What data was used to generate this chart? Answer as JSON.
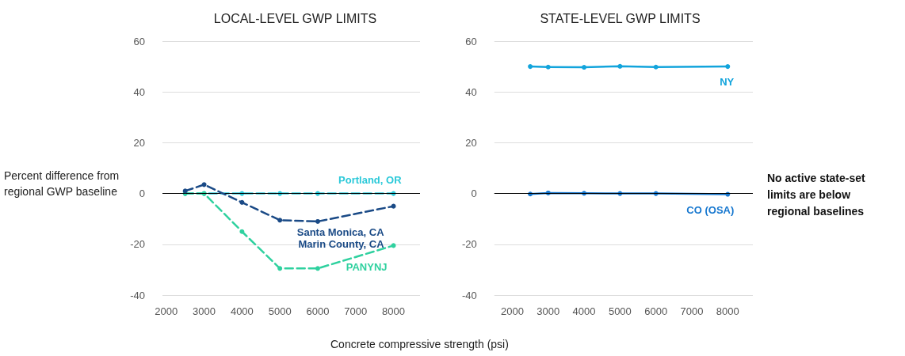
{
  "chart_data": [
    {
      "type": "line",
      "title": "LOCAL-LEVEL GWP LIMITS",
      "xlabel": "Concrete compressive strength (psi)",
      "ylabel": "Percent difference from regional GWP baseline",
      "x": [
        2500,
        3000,
        4000,
        5000,
        6000,
        8000
      ],
      "series": [
        {
          "name": "Santa Monica, CA\nMarin County, CA",
          "color": "#1a4a86",
          "values": [
            1,
            3.5,
            -3.5,
            -10.5,
            -11,
            -5
          ]
        },
        {
          "name": "PANYNJ",
          "color": "#2fd19f",
          "values": [
            0,
            0,
            -15,
            -29.5,
            -29.5,
            -20.5
          ]
        },
        {
          "name": "Portland, OR",
          "color": "#2bc9d9",
          "values": [
            0,
            0,
            0,
            0,
            0,
            0
          ]
        }
      ],
      "xlim": [
        1900,
        8700
      ],
      "xticks": [
        2000,
        3000,
        4000,
        5000,
        6000,
        7000,
        8000
      ],
      "ylim": [
        -40,
        60
      ],
      "yticks": [
        -40,
        -20,
        0,
        20,
        40,
        60
      ],
      "ref_lines": [
        {
          "axis": "y",
          "value": 0,
          "color": "#000000"
        }
      ],
      "grid": "y",
      "legend": false,
      "marker": "circle",
      "line_style": "dashed"
    },
    {
      "type": "line",
      "title": "STATE-LEVEL GWP LIMITS",
      "annotations": [
        "No active state-set limits are below regional baselines"
      ],
      "x": [
        2500,
        3000,
        4000,
        5000,
        6000,
        8000
      ],
      "series": [
        {
          "name": "NY",
          "color": "#12a4dc",
          "values": [
            50,
            49.8,
            49.7,
            50.1,
            49.8,
            50
          ]
        },
        {
          "name": "CO (OSA)",
          "color": "#1677cf",
          "values": [
            -0.2,
            0.2,
            0.1,
            0,
            0,
            -0.3
          ]
        }
      ],
      "xlim": [
        1500,
        8700
      ],
      "xticks": [
        2000,
        3000,
        4000,
        5000,
        6000,
        7000,
        8000
      ],
      "ylim": [
        -40,
        60
      ],
      "yticks": [
        -40,
        -20,
        0,
        20,
        40,
        60
      ],
      "ref_lines": [
        {
          "axis": "y",
          "value": 0,
          "color": "#000000"
        }
      ],
      "grid": "y",
      "legend": false,
      "marker": "circle",
      "line_style": "solid"
    }
  ]
}
